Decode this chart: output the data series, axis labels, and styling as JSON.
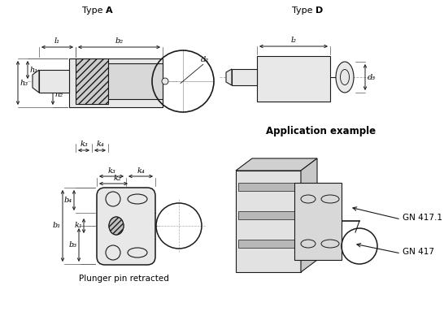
{
  "bg_color": "#ffffff",
  "line_color": "#1a1a1a",
  "center_line_color": "#aaaaaa",
  "fill_light": "#e8e8e8",
  "fill_mid": "#d4d4d4",
  "gn417": "GN 417",
  "gn4171": "GN 417.1",
  "plunger_text": "Plunger pin retracted",
  "app_example": "Application example"
}
